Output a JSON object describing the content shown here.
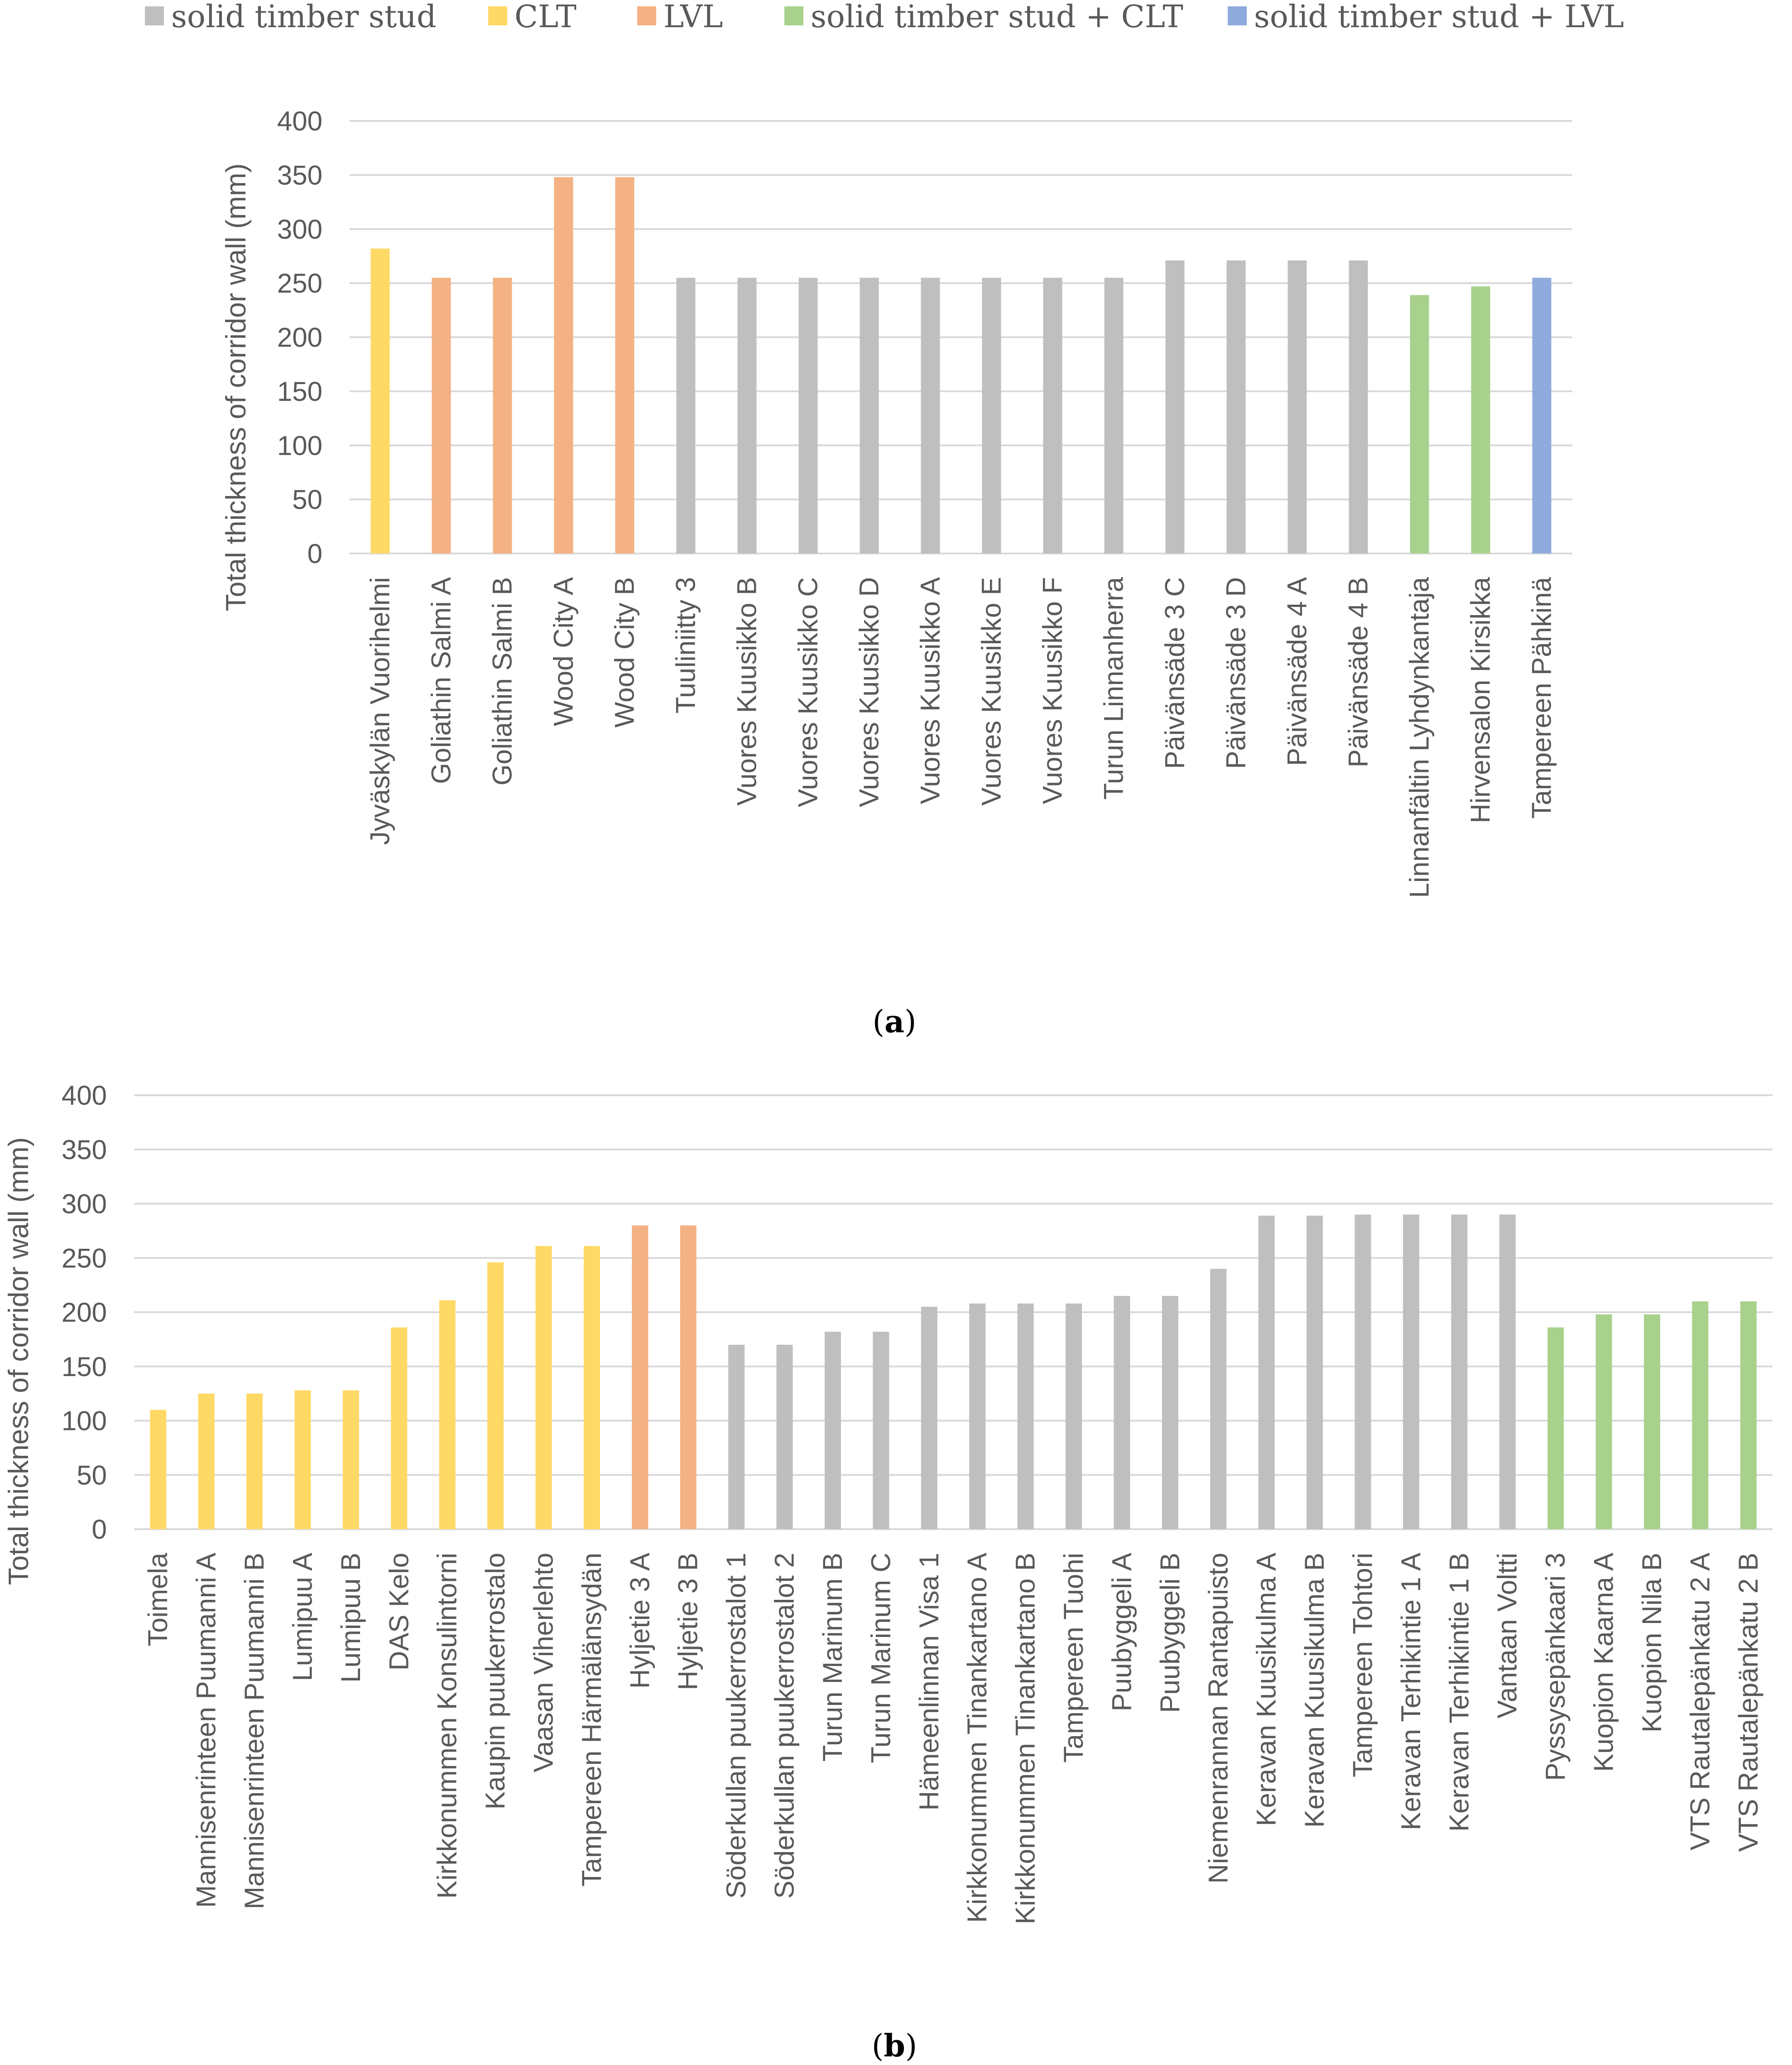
{
  "legend": [
    {
      "key": "stud",
      "label": "solid timber stud",
      "color": "#BFBFBF"
    },
    {
      "key": "clt",
      "label": "CLT",
      "color": "#FFD966"
    },
    {
      "key": "lvl",
      "label": "LVL",
      "color": "#F4B183"
    },
    {
      "key": "stud_clt",
      "label": "solid timber stud + CLT",
      "color": "#A9D18E"
    },
    {
      "key": "stud_lvl",
      "label": "solid timber stud + LVL",
      "color": "#8FAADC"
    }
  ],
  "chart_data": [
    {
      "type": "bar",
      "ylabel": "Total thickness of corridor wall (mm)",
      "ylim": [
        0,
        400
      ],
      "yticks": [
        "0",
        "50",
        "100",
        "150",
        "200",
        "250",
        "300",
        "350",
        "400"
      ],
      "grid": true,
      "caption_open": "(",
      "caption_letter": "a",
      "caption_close": ")",
      "categories": [
        "Jyväskylän Vuorihelmi",
        "Goliathin Salmi A",
        "Goliathin Salmi B",
        "Wood City A",
        "Wood City B",
        "Tuuliniitty 3",
        "Vuores Kuusikko B",
        "Vuores Kuusikko C",
        "Vuores Kuusikko D",
        "Vuores Kuusikko A",
        "Vuores Kuusikko E",
        "Vuores Kuusikko F",
        "Turun Linnanherra",
        "Päivänsäde 3 C",
        "Päivänsäde 3 D",
        "Päivänsäde 4 A",
        "Päivänsäde 4 B",
        "Linnanfältin Lyhdynkantaja",
        "Hirvensalon Kirsikka",
        "Tampereen Pähkinä"
      ],
      "values": [
        282,
        255,
        255,
        348,
        348,
        255,
        255,
        255,
        255,
        255,
        255,
        255,
        255,
        271,
        271,
        271,
        271,
        239,
        247,
        255
      ],
      "types": [
        "clt",
        "lvl",
        "lvl",
        "lvl",
        "lvl",
        "stud",
        "stud",
        "stud",
        "stud",
        "stud",
        "stud",
        "stud",
        "stud",
        "stud",
        "stud",
        "stud",
        "stud",
        "stud_clt",
        "stud_clt",
        "stud_lvl"
      ]
    },
    {
      "type": "bar",
      "ylabel": "Total thickness of corridor wall (mm)",
      "ylim": [
        0,
        400
      ],
      "yticks": [
        "0",
        "50",
        "100",
        "150",
        "200",
        "250",
        "300",
        "350",
        "400"
      ],
      "grid": true,
      "caption_open": "(",
      "caption_letter": "b",
      "caption_close": ")",
      "categories": [
        "Toimela",
        "Mannisenrinteen Puumanni A",
        "Mannisenrinteen Puumanni B",
        "Lumipuu A",
        "Lumipuu B",
        "DAS Kelo",
        "Kirkkonummen Konsulintorni",
        "Kaupin puukerrostalo",
        "Vaasan Viherlehto",
        "Tampereen Härmälänsydän",
        "Hyljetie 3 A",
        "Hyljetie 3 B",
        "Söderkullan puukerrostalot 1",
        "Söderkullan puukerrostalot 2",
        "Turun Marinum B",
        "Turun Marinum C",
        "Hämeenlinnan Visa 1",
        "Kirkkonummen Tinankartano A",
        "Kirkkonummen Tinankartano B",
        "Tampereen Tuohi",
        "Puubyggeli A",
        "Puubyggeli B",
        "Niemenrannan Rantapuisto",
        "Keravan Kuusikulma A",
        "Keravan Kuusikulma B",
        "Tampereen Tohtori",
        "Keravan Terhikintie 1 A",
        "Keravan Terhikintie 1 B",
        "Vantaan Voltti",
        "Pyssysepänkaari 3",
        "Kuopion Kaarna A",
        "Kuopion Nila B",
        "VTS Rautalepänkatu 2 A",
        "VTS Rautalepänkatu 2 B"
      ],
      "values": [
        110,
        125,
        125,
        128,
        128,
        186,
        211,
        246,
        261,
        261,
        280,
        280,
        170,
        170,
        182,
        182,
        205,
        208,
        208,
        208,
        215,
        215,
        240,
        289,
        289,
        290,
        290,
        290,
        290,
        186,
        198,
        198,
        210,
        210
      ],
      "types": [
        "clt",
        "clt",
        "clt",
        "clt",
        "clt",
        "clt",
        "clt",
        "clt",
        "clt",
        "clt",
        "lvl",
        "lvl",
        "stud",
        "stud",
        "stud",
        "stud",
        "stud",
        "stud",
        "stud",
        "stud",
        "stud",
        "stud",
        "stud",
        "stud",
        "stud",
        "stud",
        "stud",
        "stud",
        "stud",
        "stud_clt",
        "stud_clt",
        "stud_clt",
        "stud_clt",
        "stud_clt"
      ]
    }
  ]
}
